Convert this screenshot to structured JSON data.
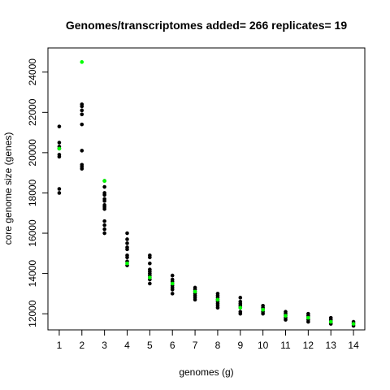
{
  "chart_data": {
    "type": "scatter",
    "title": "Genomes/transcriptomes added= 266  replicates= 19",
    "xlabel": "genomes (g)",
    "ylabel": "core genome size (genes)",
    "xlim": [
      0.5,
      14.5
    ],
    "ylim": [
      11200,
      25200
    ],
    "x_ticks": [
      1,
      2,
      3,
      4,
      5,
      6,
      7,
      8,
      9,
      10,
      11,
      12,
      13,
      14
    ],
    "y_ticks": [
      12000,
      14000,
      16000,
      18000,
      20000,
      22000,
      24000
    ],
    "grid": false,
    "legend": "none",
    "colors": {
      "replicates": "#000000",
      "highlight": "#00ff00"
    },
    "series": [
      {
        "points": [
          [
            1,
            21300
          ],
          [
            1,
            20500
          ],
          [
            1,
            20300
          ],
          [
            1,
            20200
          ],
          [
            1,
            19900
          ],
          [
            1,
            19800
          ],
          [
            1,
            18200
          ],
          [
            1,
            18000
          ],
          [
            2,
            22400
          ],
          [
            2,
            22300
          ],
          [
            2,
            22100
          ],
          [
            2,
            21900
          ],
          [
            2,
            21400
          ],
          [
            2,
            20100
          ],
          [
            2,
            19400
          ],
          [
            2,
            19300
          ],
          [
            2,
            19200
          ],
          [
            3,
            18600
          ],
          [
            3,
            18300
          ],
          [
            3,
            18000
          ],
          [
            3,
            17900
          ],
          [
            3,
            17700
          ],
          [
            3,
            17600
          ],
          [
            3,
            17400
          ],
          [
            3,
            17300
          ],
          [
            3,
            17200
          ],
          [
            3,
            16600
          ],
          [
            3,
            16400
          ],
          [
            3,
            16200
          ],
          [
            3,
            16000
          ],
          [
            4,
            16000
          ],
          [
            4,
            15700
          ],
          [
            4,
            15500
          ],
          [
            4,
            15300
          ],
          [
            4,
            15200
          ],
          [
            4,
            14900
          ],
          [
            4,
            14800
          ],
          [
            4,
            14600
          ],
          [
            4,
            14400
          ],
          [
            5,
            14900
          ],
          [
            5,
            14800
          ],
          [
            5,
            14500
          ],
          [
            5,
            14200
          ],
          [
            5,
            14100
          ],
          [
            5,
            14000
          ],
          [
            5,
            13900
          ],
          [
            5,
            13800
          ],
          [
            5,
            13700
          ],
          [
            5,
            13500
          ],
          [
            6,
            13900
          ],
          [
            6,
            13700
          ],
          [
            6,
            13600
          ],
          [
            6,
            13500
          ],
          [
            6,
            13400
          ],
          [
            6,
            13300
          ],
          [
            6,
            13200
          ],
          [
            6,
            13000
          ],
          [
            7,
            13300
          ],
          [
            7,
            13200
          ],
          [
            7,
            13100
          ],
          [
            7,
            13000
          ],
          [
            7,
            12900
          ],
          [
            7,
            12800
          ],
          [
            7,
            12700
          ],
          [
            8,
            13000
          ],
          [
            8,
            12900
          ],
          [
            8,
            12800
          ],
          [
            8,
            12700
          ],
          [
            8,
            12600
          ],
          [
            8,
            12500
          ],
          [
            8,
            12400
          ],
          [
            8,
            12300
          ],
          [
            9,
            12800
          ],
          [
            9,
            12600
          ],
          [
            9,
            12500
          ],
          [
            9,
            12400
          ],
          [
            9,
            12300
          ],
          [
            9,
            12100
          ],
          [
            9,
            12000
          ],
          [
            10,
            12400
          ],
          [
            10,
            12300
          ],
          [
            10,
            12200
          ],
          [
            10,
            12100
          ],
          [
            10,
            12000
          ],
          [
            11,
            12100
          ],
          [
            11,
            12000
          ],
          [
            11,
            11900
          ],
          [
            11,
            11800
          ],
          [
            11,
            11700
          ],
          [
            12,
            12000
          ],
          [
            12,
            11900
          ],
          [
            12,
            11800
          ],
          [
            12,
            11700
          ],
          [
            12,
            11600
          ],
          [
            13,
            11800
          ],
          [
            13,
            11700
          ],
          [
            13,
            11600
          ],
          [
            13,
            11500
          ],
          [
            14,
            11600
          ],
          [
            14,
            11500
          ],
          [
            14,
            11400
          ]
        ]
      },
      {
        "points": [
          [
            1,
            20200
          ],
          [
            2,
            24500
          ],
          [
            3,
            18600
          ],
          [
            4,
            14500
          ],
          [
            5,
            13800
          ],
          [
            6,
            13500
          ],
          [
            7,
            13100
          ],
          [
            8,
            12700
          ],
          [
            9,
            12300
          ],
          [
            10,
            12200
          ],
          [
            11,
            11900
          ],
          [
            12,
            11800
          ],
          [
            13,
            11600
          ],
          [
            14,
            11500
          ]
        ]
      }
    ]
  }
}
